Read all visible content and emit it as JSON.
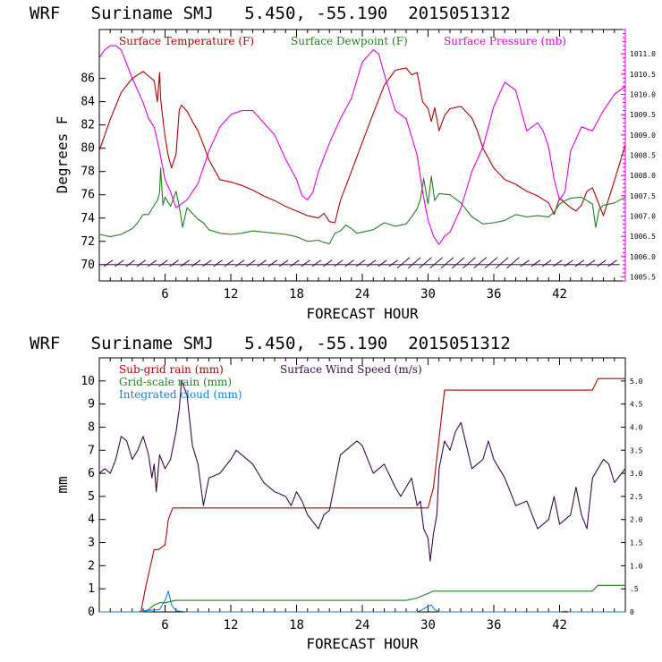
{
  "colors": {
    "temperature": "#b00000",
    "dewpoint": "#208020",
    "pressure": "#e000e0",
    "wind": "#3a0a48",
    "subgrid": "#b00000",
    "gridscale": "#208020",
    "cloud": "#1080e0",
    "axis": "#000000"
  },
  "chart_data": [
    {
      "type": "line",
      "title": "WRF   Suriname SMJ   5.450, -55.190  2015051312",
      "xlabel": "FORECAST HOUR",
      "ylabel": "Degrees F",
      "xlim": [
        0,
        48
      ],
      "ylim": [
        68.6,
        90.2
      ],
      "y2lim": [
        1005.4,
        1011.6
      ],
      "x_ticks": [
        6,
        12,
        18,
        24,
        30,
        36,
        42
      ],
      "x_tick_labels": [
        "6",
        "12",
        "18",
        "24",
        "30",
        "36",
        "42"
      ],
      "y_ticks": [
        70,
        72,
        74,
        76,
        78,
        80,
        82,
        84,
        86
      ],
      "y_tick_labels": [
        "70",
        "72",
        "74",
        "76",
        "78",
        "80",
        "82",
        "84",
        "86"
      ],
      "y2_ticks": [
        1005.5,
        1006.0,
        1006.5,
        1007.0,
        1007.5,
        1008.0,
        1008.5,
        1009.0,
        1009.5,
        1010.0,
        1010.5,
        1011.0
      ],
      "y2_tick_labels": [
        "1005.5",
        "1006.0",
        "1006.5",
        "1007.0",
        "1007.5",
        "1008.0",
        "1008.5",
        "1009.0",
        "1009.5",
        "1010.0",
        "1010.5",
        "1011.0"
      ],
      "legend": [
        "Surface Temperature (F)",
        "Surface Dewpoint (F)",
        "Surface Pressure (mb)"
      ],
      "wind_barb_level": 70,
      "series": [
        {
          "name": "Surface Temperature (F)",
          "axis": "left",
          "x": [
            0,
            1,
            2,
            3,
            4,
            4.5,
            5,
            5.3,
            5.5,
            5.6,
            5.8,
            6,
            6.3,
            6.6,
            7,
            7.3,
            7.5,
            8,
            8.5,
            9,
            9.5,
            10,
            11,
            12,
            13,
            14,
            15,
            16,
            17,
            18,
            19,
            20,
            20.5,
            21,
            21.5,
            22,
            23,
            24,
            25,
            26,
            27,
            28,
            28.5,
            29,
            29.5,
            30,
            30.3,
            30.6,
            31,
            31.5,
            32,
            33,
            34,
            34.5,
            35,
            36,
            37,
            38,
            39,
            40,
            41,
            41.5,
            42,
            42.5,
            43,
            43.5,
            44,
            44.5,
            45,
            45.5,
            46,
            47,
            48
          ],
          "y": [
            79.8,
            82.5,
            84.8,
            86,
            86.6,
            86.2,
            85.8,
            84,
            86.5,
            84.2,
            82.5,
            81,
            79.3,
            78.3,
            79.5,
            83.3,
            83.7,
            83.2,
            82.3,
            81.5,
            80.3,
            79,
            77.3,
            77.1,
            76.8,
            76.4,
            75.9,
            75.5,
            75,
            74.6,
            74.2,
            74,
            74.4,
            73.7,
            73.6,
            75.5,
            78,
            80.5,
            83,
            85.4,
            86.7,
            86.9,
            86.3,
            86.5,
            84,
            83.4,
            82.3,
            83.5,
            81.5,
            82.8,
            83.4,
            83.6,
            82.6,
            81.5,
            80,
            78.3,
            77.3,
            76.9,
            76.3,
            75.9,
            75.3,
            74.3,
            75.7,
            75.3,
            74.9,
            74.6,
            75.1,
            76.3,
            76.6,
            75.4,
            74.2,
            77.2,
            80.3
          ]
        },
        {
          "name": "Surface Dewpoint (F)",
          "axis": "left",
          "x": [
            0,
            1,
            2,
            3,
            3.5,
            4,
            4.5,
            5,
            5.3,
            5.5,
            5.6,
            5.8,
            6,
            6.5,
            7,
            7.3,
            7.6,
            8,
            9,
            9.5,
            10,
            11,
            12,
            13,
            14,
            15,
            16,
            17,
            18,
            18.5,
            19,
            20,
            20.5,
            21,
            21.5,
            22,
            22.5,
            23,
            23.5,
            24,
            25,
            26,
            27,
            28,
            28.5,
            29,
            29.3,
            29.6,
            30,
            30.3,
            30.6,
            31,
            32,
            33,
            34,
            35,
            36,
            37,
            38,
            39,
            40,
            41,
            41.5,
            42,
            42.5,
            43,
            44,
            45,
            45.3,
            45.6,
            46,
            47,
            48
          ],
          "y": [
            72.6,
            72.4,
            72.6,
            73.1,
            73.6,
            74.3,
            74.3,
            75.1,
            75.5,
            76.2,
            78.3,
            75.1,
            75.8,
            75,
            76.3,
            75,
            73.2,
            74.9,
            73.9,
            73.6,
            73,
            72.7,
            72.6,
            72.7,
            72.9,
            72.8,
            72.7,
            72.6,
            72.4,
            72.2,
            72,
            72.1,
            71.9,
            71.8,
            72.7,
            72.9,
            73.4,
            73.1,
            72.7,
            72.8,
            73,
            73.6,
            73.3,
            73.5,
            74.1,
            74.8,
            75.6,
            77.4,
            75.2,
            77.6,
            75.5,
            76.1,
            76,
            75.3,
            74.1,
            73.5,
            73.6,
            73.8,
            74.3,
            74.1,
            74.2,
            74.1,
            74.5,
            75.2,
            75.5,
            75.7,
            75.8,
            75.2,
            73.2,
            74.7,
            75.1,
            75.3,
            75.8
          ]
        },
        {
          "name": "Surface Pressure (mb)",
          "axis": "right",
          "x": [
            0,
            0.5,
            1,
            1.5,
            2,
            3,
            4,
            4.5,
            5,
            5.5,
            6,
            6.5,
            7,
            7.5,
            8,
            9,
            10,
            11,
            12,
            13,
            14,
            15,
            16,
            17,
            18,
            18.5,
            19,
            19.5,
            20,
            21,
            22,
            23,
            24,
            25,
            25.5,
            26,
            27,
            28,
            29,
            29.5,
            30,
            30.5,
            31,
            31.5,
            32,
            33,
            34,
            35,
            36,
            37,
            38,
            38.5,
            39,
            40,
            40.5,
            41,
            41.5,
            42,
            42.5,
            43,
            44,
            45,
            46,
            47,
            48
          ],
          "y": [
            1010.9,
            1011.1,
            1011.2,
            1011.2,
            1011.1,
            1010.4,
            1009.8,
            1009.4,
            1009.2,
            1008.6,
            1007.9,
            1007.6,
            1007.2,
            1007.3,
            1007.4,
            1007.8,
            1008.6,
            1009.2,
            1009.5,
            1009.6,
            1009.6,
            1009.3,
            1009,
            1008.4,
            1007.9,
            1007.5,
            1007.4,
            1007.6,
            1008.1,
            1008.8,
            1009.4,
            1009.9,
            1010.8,
            1011.1,
            1011,
            1010.5,
            1009.6,
            1009.4,
            1008.5,
            1007.6,
            1006.9,
            1006.5,
            1006.3,
            1006.5,
            1006.6,
            1007.2,
            1008.1,
            1008.7,
            1009.7,
            1010.3,
            1010.1,
            1009.6,
            1009.1,
            1009.3,
            1009.1,
            1008.7,
            1007.9,
            1007.4,
            1007.6,
            1008.6,
            1009.2,
            1009.1,
            1009.6,
            1010,
            1010.2
          ]
        }
      ]
    },
    {
      "type": "line",
      "title": "WRF   Suriname SMJ   5.450, -55.190  2015051312",
      "xlabel": "FORECAST HOUR",
      "ylabel": "mm",
      "xlim": [
        0,
        48
      ],
      "ylim": [
        0,
        11
      ],
      "y2lim": [
        0,
        5.5
      ],
      "x_ticks": [
        6,
        12,
        18,
        24,
        30,
        36,
        42
      ],
      "x_tick_labels": [
        "6",
        "12",
        "18",
        "24",
        "30",
        "36",
        "42"
      ],
      "y_ticks": [
        0,
        1,
        2,
        3,
        4,
        5,
        6,
        7,
        8,
        9,
        10
      ],
      "y_tick_labels": [
        "0",
        "1",
        "2",
        "3",
        "4",
        "5",
        "6",
        "7",
        "8",
        "9",
        "10"
      ],
      "y2_ticks": [
        0,
        0.5,
        1.0,
        1.5,
        2.0,
        2.5,
        3.0,
        3.5,
        4.0,
        4.5,
        5.0
      ],
      "y2_tick_labels": [
        "0",
        ".5",
        "1.0",
        "1.5",
        "2.0",
        "2.5",
        "3.0",
        "3.5",
        "4.0",
        "4.5",
        "5.0"
      ],
      "legend": [
        "Sub-grid rain (mm)",
        "Surface Wind Speed (m/s)",
        "Grid-scale rain (mm)",
        "Integrated cloud (mm)"
      ],
      "series": [
        {
          "name": "Sub-grid rain (mm)",
          "axis": "left",
          "x": [
            0,
            3.8,
            4.2,
            5,
            5.4,
            6,
            6.3,
            6.7,
            7,
            30,
            30.5,
            31.5,
            32,
            45,
            45.5,
            48
          ],
          "y": [
            0,
            0,
            1,
            2.7,
            2.7,
            2.9,
            4,
            4.5,
            4.5,
            4.5,
            5.4,
            9.6,
            9.6,
            9.6,
            10.1,
            10.1
          ]
        },
        {
          "name": "Grid-scale rain (mm)",
          "axis": "left",
          "x": [
            0,
            4,
            4.5,
            5,
            5.5,
            6,
            6.5,
            7,
            28,
            29,
            30,
            30.5,
            45,
            45.5,
            48
          ],
          "y": [
            0,
            0,
            0.1,
            0.3,
            0.4,
            0.4,
            0.45,
            0.5,
            0.5,
            0.6,
            0.8,
            0.9,
            0.9,
            1.15,
            1.15
          ]
        },
        {
          "name": "Integrated cloud (mm)",
          "axis": "left",
          "x": [
            0,
            3.5,
            4,
            5.5,
            6,
            6.3,
            6.6,
            7,
            8,
            28,
            29,
            29.5,
            30,
            30.3,
            30.6,
            31,
            42,
            42.5,
            43,
            48
          ],
          "y": [
            0,
            0,
            0.05,
            0.1,
            0.5,
            0.9,
            0.3,
            0.05,
            0,
            0,
            0,
            0.1,
            0.25,
            0.3,
            0.1,
            0,
            0,
            0.03,
            0,
            0
          ]
        },
        {
          "name": "Surface Wind Speed (m/s)",
          "axis": "right",
          "x": [
            0,
            0.5,
            1,
            1.5,
            2,
            2.5,
            3,
            3.5,
            4,
            4.5,
            4.8,
            5,
            5.2,
            5.5,
            6,
            6.5,
            7,
            7.3,
            7.5,
            8,
            8.5,
            9,
            9.5,
            10,
            11,
            12,
            12.5,
            13,
            14,
            15,
            16,
            17,
            17.5,
            18,
            18.5,
            19,
            20,
            20.5,
            21,
            21.5,
            22,
            23,
            23.5,
            24,
            24.5,
            25,
            26,
            27,
            27.5,
            28,
            28.5,
            29,
            29.3,
            29.6,
            30,
            30.2,
            30.5,
            30.8,
            31,
            31.5,
            32,
            32.5,
            33,
            33.5,
            34,
            35,
            35.5,
            36,
            37,
            38,
            39,
            40,
            41,
            41.5,
            42,
            43,
            43.5,
            44,
            44.5,
            45,
            46,
            46.5,
            47,
            48
          ],
          "y": [
            3.0,
            3.1,
            3.0,
            3.3,
            3.8,
            3.7,
            3.3,
            3.5,
            3.8,
            3.4,
            2.9,
            3.2,
            2.6,
            3.4,
            3.1,
            3.3,
            3.9,
            4.4,
            5.0,
            4.7,
            3.6,
            3.2,
            2.3,
            2.9,
            3.0,
            3.3,
            3.5,
            3.4,
            3.2,
            2.8,
            2.6,
            2.5,
            2.3,
            2.6,
            2.4,
            2.1,
            1.8,
            2.1,
            2.2,
            2.8,
            3.4,
            3.6,
            3.7,
            3.6,
            3.3,
            3.0,
            3.2,
            2.7,
            2.5,
            2.7,
            2.9,
            2.3,
            2.4,
            1.8,
            1.6,
            1.1,
            1.7,
            2.1,
            3.1,
            3.7,
            3.5,
            3.9,
            4.1,
            3.6,
            3.1,
            3.3,
            3.7,
            3.3,
            2.9,
            2.3,
            2.4,
            1.8,
            2.0,
            2.5,
            1.9,
            2.1,
            2.7,
            2.1,
            1.8,
            2.9,
            3.3,
            3.2,
            2.8,
            3.1
          ]
        }
      ]
    }
  ]
}
